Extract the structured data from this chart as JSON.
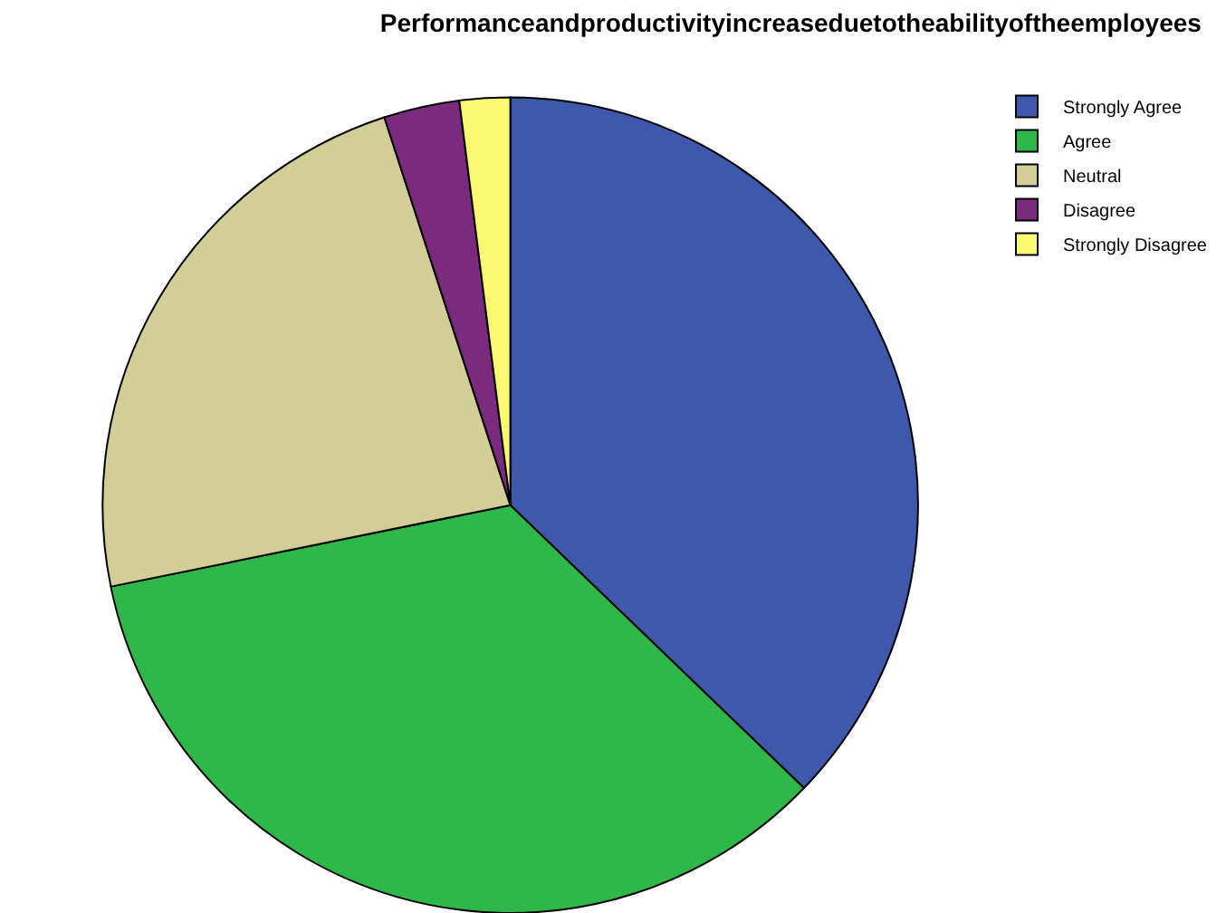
{
  "chart_data": {
    "type": "pie",
    "title": "Performanceandproductivityincreaseduetotheabilityoftheemployees",
    "categories": [
      "Strongly Agree",
      "Agree",
      "Neutral",
      "Disagree",
      "Strongly Disagree"
    ],
    "values": [
      37.2,
      34.6,
      23.2,
      3.0,
      2.0
    ],
    "colors": [
      "#3e58ac",
      "#2fb84a",
      "#d3ce97",
      "#7b2a7d",
      "#fbf871"
    ],
    "legend": "top right"
  }
}
